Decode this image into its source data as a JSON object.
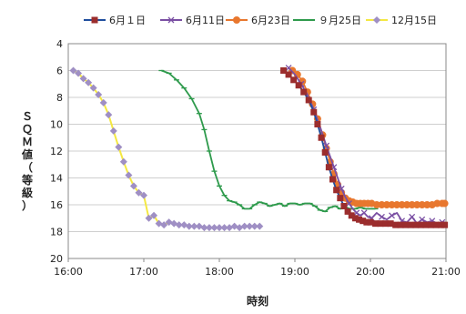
{
  "chart_data": {
    "type": "line",
    "title": "",
    "xlabel": "時刻",
    "ylabel": "ＳＱＭ値（等級）",
    "ylim": [
      4,
      20
    ],
    "y_inverted": true,
    "yticks": [
      "4",
      "6",
      "8",
      "10",
      "12",
      "14",
      "16",
      "18",
      "20"
    ],
    "xlim_minutes": [
      960,
      1260
    ],
    "xticks": [
      {
        "label": "16:00",
        "minute": 960
      },
      {
        "label": "17:00",
        "minute": 1020
      },
      {
        "label": "18:00",
        "minute": 1080
      },
      {
        "label": "19:00",
        "minute": 1140
      },
      {
        "label": "20:00",
        "minute": 1200
      },
      {
        "label": "21:00",
        "minute": 1260
      }
    ],
    "grid": true,
    "legend": "top",
    "series": [
      {
        "name": "6月１日",
        "color": "#1f4e9e",
        "marker": "square",
        "marker_color": "#9b2d2d",
        "x": [
          1131,
          1135,
          1139,
          1143,
          1147,
          1151,
          1155,
          1158,
          1161,
          1164,
          1167,
          1170,
          1173,
          1176,
          1179,
          1182,
          1185,
          1188,
          1191,
          1194,
          1197,
          1200,
          1204,
          1208,
          1212,
          1216,
          1220,
          1224,
          1228,
          1232,
          1236,
          1240,
          1244,
          1248,
          1252,
          1256,
          1259
        ],
        "y": [
          6.0,
          6.3,
          6.7,
          7.1,
          7.6,
          8.2,
          9.1,
          10.0,
          11.0,
          12.1,
          13.2,
          14.1,
          14.9,
          15.5,
          16.1,
          16.5,
          16.8,
          17.0,
          17.1,
          17.2,
          17.3,
          17.3,
          17.4,
          17.4,
          17.4,
          17.4,
          17.5,
          17.5,
          17.5,
          17.5,
          17.5,
          17.5,
          17.5,
          17.5,
          17.5,
          17.5,
          17.5
        ],
        "marker_every": 1
      },
      {
        "name": "6月11日",
        "color": "#7a4fa3",
        "marker": "x",
        "marker_color": "#7a4fa3",
        "x": [
          1135,
          1140,
          1145,
          1150,
          1155,
          1160,
          1165,
          1168,
          1171,
          1174,
          1177,
          1180,
          1183,
          1186,
          1189,
          1192,
          1195,
          1198,
          1201,
          1205,
          1209,
          1213,
          1217,
          1221,
          1225,
          1229,
          1233,
          1237,
          1241,
          1245,
          1249,
          1253,
          1257,
          1259
        ],
        "y": [
          5.8,
          6.3,
          7.0,
          7.8,
          8.9,
          10.2,
          11.6,
          12.4,
          13.2,
          14.0,
          14.8,
          15.4,
          15.9,
          16.3,
          16.6,
          16.8,
          16.6,
          16.9,
          17.0,
          16.6,
          16.9,
          17.1,
          16.8,
          16.6,
          17.2,
          17.3,
          16.9,
          17.4,
          17.1,
          17.3,
          17.2,
          17.4,
          17.3,
          17.3
        ],
        "marker_every": 2
      },
      {
        "name": "6月23日",
        "color": "#e8772e",
        "marker": "circle",
        "marker_color": "#e8772e",
        "x": [
          1138,
          1142,
          1146,
          1150,
          1154,
          1158,
          1162,
          1165,
          1168,
          1171,
          1174,
          1177,
          1180,
          1183,
          1186,
          1189,
          1192,
          1195,
          1198,
          1201,
          1205,
          1209,
          1213,
          1217,
          1221,
          1225,
          1229,
          1233,
          1237,
          1241,
          1245,
          1249,
          1253,
          1257,
          1259
        ],
        "y": [
          6.0,
          6.3,
          6.8,
          7.6,
          8.5,
          9.6,
          10.8,
          11.8,
          12.8,
          13.7,
          14.5,
          15.1,
          15.5,
          15.7,
          15.8,
          15.9,
          15.9,
          15.9,
          15.9,
          15.9,
          16.0,
          16.0,
          16.0,
          16.0,
          16.0,
          16.0,
          16.0,
          16.0,
          16.0,
          16.0,
          16.0,
          16.0,
          15.9,
          15.9,
          15.9
        ],
        "marker_every": 1
      },
      {
        "name": "９月25日",
        "color": "#2e9a4c",
        "marker": "dash",
        "marker_color": "#2e9a4c",
        "x": [
          1034,
          1040,
          1046,
          1052,
          1058,
          1064,
          1068,
          1072,
          1076,
          1080,
          1084,
          1088,
          1092,
          1096,
          1100,
          1104,
          1108,
          1112,
          1116,
          1120,
          1124,
          1128,
          1132,
          1136,
          1140,
          1144,
          1148,
          1152,
          1156,
          1160,
          1164,
          1168,
          1172,
          1176,
          1180,
          1184,
          1188,
          1192,
          1196,
          1200,
          1204
        ],
        "y": [
          6.0,
          6.2,
          6.7,
          7.3,
          8.1,
          9.2,
          10.4,
          12.0,
          13.5,
          14.6,
          15.3,
          15.7,
          15.8,
          16.0,
          16.3,
          16.3,
          16.0,
          15.8,
          15.9,
          16.1,
          16.0,
          15.9,
          16.1,
          15.9,
          15.9,
          16.0,
          15.9,
          15.9,
          16.1,
          16.4,
          16.5,
          16.2,
          16.1,
          16.3,
          16.2,
          16.3,
          16.3,
          16.2,
          16.3,
          16.3,
          16.3
        ],
        "marker_every": 1
      },
      {
        "name": "12月15日",
        "color": "#f4e842",
        "marker": "diamond",
        "marker_color": "#9f8fc4",
        "x": [
          964,
          968,
          972,
          976,
          980,
          984,
          988,
          992,
          996,
          1000,
          1004,
          1008,
          1012,
          1016,
          1020,
          1024,
          1028,
          1032,
          1036,
          1040,
          1044,
          1048,
          1052,
          1056,
          1060,
          1064,
          1068,
          1072,
          1076,
          1080,
          1084,
          1088,
          1092,
          1096,
          1100,
          1104,
          1108,
          1112
        ],
        "y": [
          6.0,
          6.2,
          6.6,
          6.9,
          7.3,
          7.8,
          8.4,
          9.3,
          10.5,
          11.7,
          12.8,
          13.8,
          14.6,
          15.1,
          15.3,
          17.0,
          16.8,
          17.4,
          17.5,
          17.3,
          17.4,
          17.5,
          17.5,
          17.6,
          17.6,
          17.6,
          17.7,
          17.7,
          17.7,
          17.7,
          17.7,
          17.7,
          17.6,
          17.7,
          17.6,
          17.6,
          17.6,
          17.6
        ],
        "marker_every": 1
      }
    ]
  }
}
